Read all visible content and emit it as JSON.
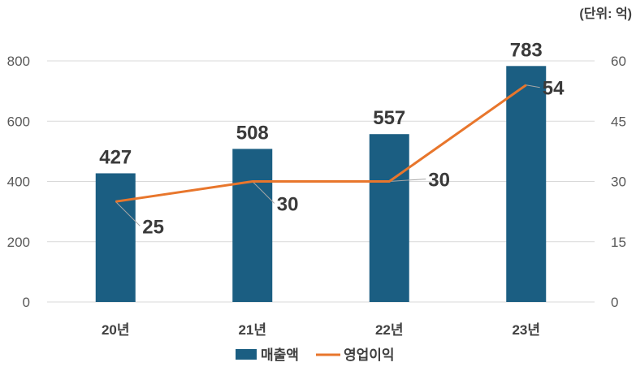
{
  "chart_data": {
    "type": "bar",
    "categories": [
      "20년",
      "21년",
      "22년",
      "23년"
    ],
    "series": [
      {
        "name": "매출액",
        "type": "bar",
        "axis": "left",
        "values": [
          427,
          508,
          557,
          783
        ]
      },
      {
        "name": "영업이익",
        "type": "line",
        "axis": "right",
        "values": [
          25,
          30,
          30,
          54
        ]
      }
    ],
    "unit_label": "(단위: 억)",
    "ylim_left": [
      0,
      800
    ],
    "yticks_left": [
      "0",
      "200",
      "400",
      "600",
      "800"
    ],
    "ylim_right": [
      0,
      60
    ],
    "yticks_right": [
      "0",
      "15",
      "30",
      "45",
      "60"
    ],
    "grid": true,
    "legend_position": "bottom",
    "colors": {
      "bar": "#1b5e82",
      "line": "#e8762c",
      "grid": "#d9d9d9",
      "leader": "#a6a6a6"
    }
  }
}
